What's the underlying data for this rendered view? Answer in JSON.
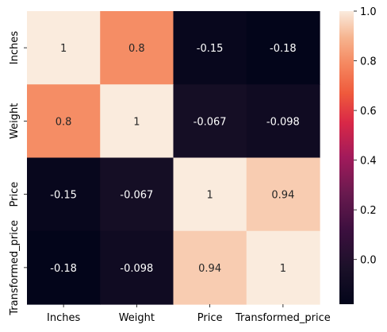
{
  "chart_data": {
    "type": "heatmap",
    "title": "",
    "xlabel": "",
    "ylabel": "",
    "x_categories": [
      "Inches",
      "Weight",
      "Price",
      "Transformed_price"
    ],
    "y_categories": [
      "Inches",
      "Weight",
      "Price",
      "Transformed_price"
    ],
    "values": [
      [
        1,
        0.8,
        -0.15,
        -0.18
      ],
      [
        0.8,
        1,
        -0.067,
        -0.098
      ],
      [
        -0.15,
        -0.067,
        1,
        0.94
      ],
      [
        -0.18,
        -0.098,
        0.94,
        1
      ]
    ],
    "cell_labels": [
      [
        "1",
        "0.8",
        "-0.15",
        "-0.18"
      ],
      [
        "0.8",
        "1",
        "-0.067",
        "-0.098"
      ],
      [
        "-0.15",
        "-0.067",
        "1",
        "0.94"
      ],
      [
        "-0.18",
        "-0.098",
        "0.94",
        "1"
      ]
    ],
    "colorbar": {
      "colormap": "rocket",
      "vmin": -0.18,
      "vmax": 1,
      "ticks": [
        0.0,
        0.2,
        0.4,
        0.6,
        0.8,
        1.0
      ],
      "tick_labels": [
        "0.0",
        "0.2",
        "0.4",
        "0.6",
        "0.8",
        "1.0"
      ],
      "placement": "right"
    },
    "grid": false
  }
}
